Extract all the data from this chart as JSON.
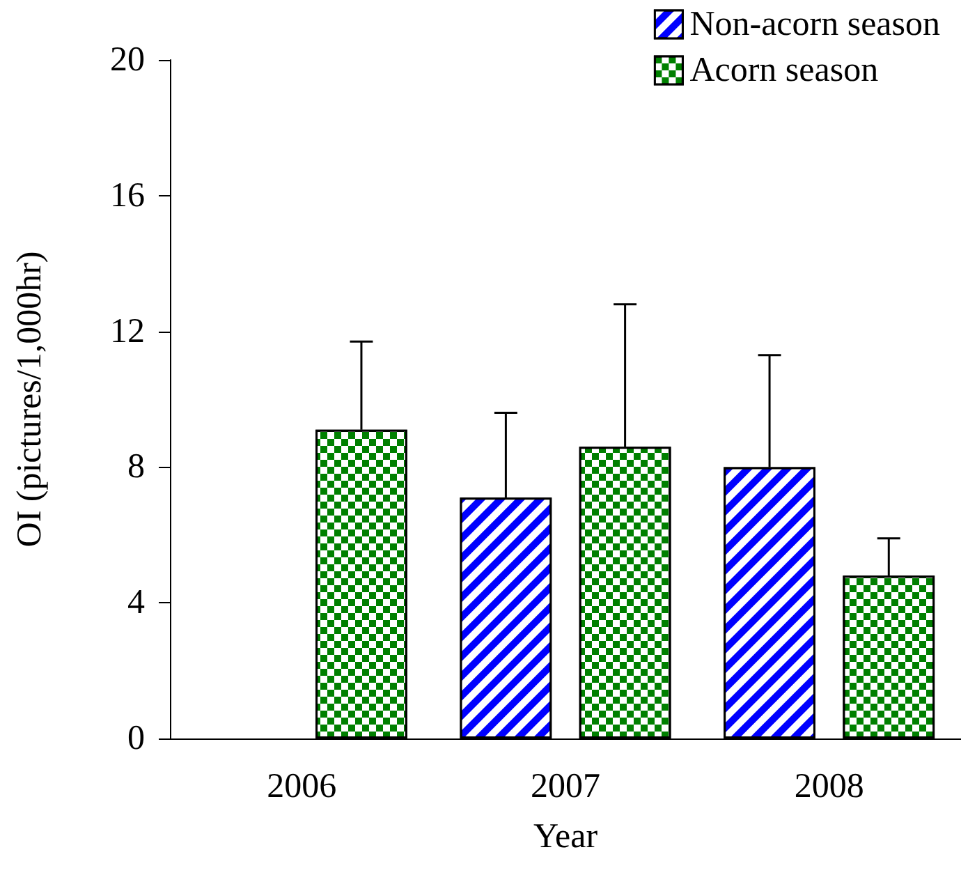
{
  "chart_data": {
    "type": "bar",
    "xlabel": "Year",
    "ylabel": "OI (pictures/1,000hr)",
    "categories": [
      "2006",
      "2007",
      "2008"
    ],
    "series": [
      {
        "name": "Non-acorn season",
        "color": "#0000ff",
        "values": [
          null,
          7.1,
          8.0
        ],
        "errors": [
          null,
          [
            7.1,
            9.6
          ],
          [
            8.0,
            11.3
          ]
        ]
      },
      {
        "name": "Acorn season",
        "color": "#008000",
        "values": [
          9.1,
          8.6,
          4.8
        ],
        "errors": [
          [
            9.1,
            11.7
          ],
          [
            8.6,
            12.8
          ],
          [
            4.8,
            5.9
          ]
        ]
      }
    ],
    "ylim": [
      0,
      20
    ],
    "yticks": [
      0,
      4,
      8,
      12,
      16,
      20
    ],
    "grid": false,
    "legend": "top right"
  }
}
